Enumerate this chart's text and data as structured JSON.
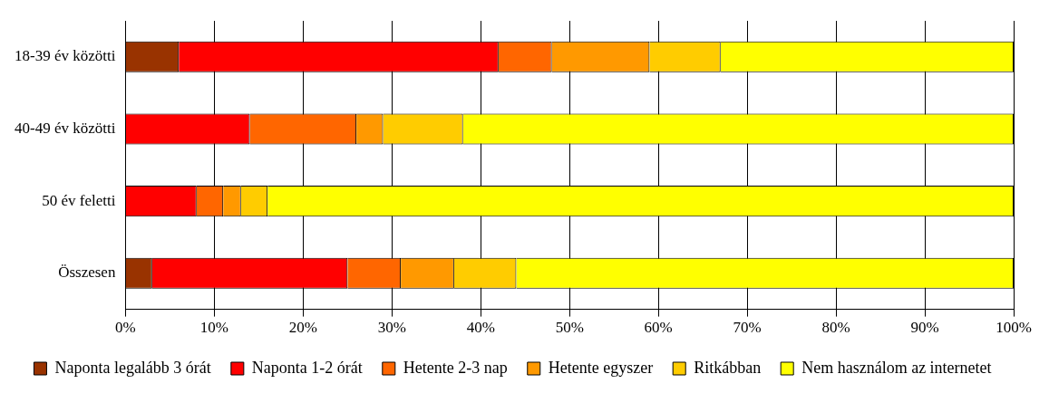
{
  "chart_data": {
    "type": "bar",
    "orientation": "horizontal",
    "stacked": true,
    "categories": [
      "18-39 év közötti",
      "40-49 év közötti",
      "50 év feletti",
      "Összesen"
    ],
    "series": [
      {
        "name": "Naponta legalább 3 órát",
        "color": "#993300",
        "values": [
          6,
          0,
          0,
          3
        ]
      },
      {
        "name": "Naponta 1-2 órát",
        "color": "#ff0000",
        "values": [
          36,
          14,
          8,
          22
        ]
      },
      {
        "name": "Hetente 2-3 nap",
        "color": "#ff6600",
        "values": [
          6,
          12,
          3,
          6
        ]
      },
      {
        "name": "Hetente egyszer",
        "color": "#ff9900",
        "values": [
          11,
          3,
          2,
          6
        ]
      },
      {
        "name": "Ritkábban",
        "color": "#ffcc00",
        "values": [
          8,
          9,
          3,
          7
        ]
      },
      {
        "name": "Nem használom az internetet",
        "color": "#ffff00",
        "values": [
          33,
          62,
          84,
          56
        ]
      }
    ],
    "xlim": [
      0,
      100
    ],
    "xticks": [
      {
        "value": 0,
        "label": "0%"
      },
      {
        "value": 10,
        "label": "10%"
      },
      {
        "value": 20,
        "label": "20%"
      },
      {
        "value": 30,
        "label": "30%"
      },
      {
        "value": 40,
        "label": "40%"
      },
      {
        "value": 50,
        "label": "50%"
      },
      {
        "value": 60,
        "label": "60%"
      },
      {
        "value": 70,
        "label": "70%"
      },
      {
        "value": 80,
        "label": "80%"
      },
      {
        "value": 90,
        "label": "90%"
      },
      {
        "value": 100,
        "label": "100%"
      }
    ],
    "grid": "x",
    "legend": "bottom"
  }
}
